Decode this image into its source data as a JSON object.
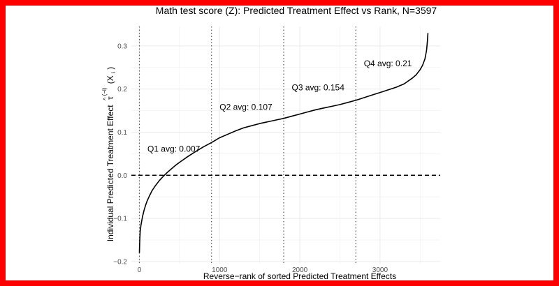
{
  "chart_data": {
    "type": "line",
    "title": "Math test score (Z): Predicted Treatment Effect vs Rank, N=3597",
    "xlabel": "Reverse−rank of sorted Predicted Treatment Effects",
    "ylabel_main": "Individual Predicted Treatment Effect",
    "ylabel_symbol": "τ",
    "ylabel_hat": "^",
    "ylabel_superscript": "(−i)",
    "ylabel_args": "(X",
    "ylabel_subscript": "i",
    "ylabel_close": ")",
    "xlim": [
      -100,
      3750
    ],
    "ylim": [
      -0.205,
      0.345
    ],
    "x_ticks": [
      0,
      1000,
      2000,
      3000
    ],
    "x_tick_labels": [
      "0",
      "1000",
      "2000",
      "3000"
    ],
    "y_ticks": [
      -0.2,
      -0.1,
      0.0,
      0.1,
      0.2,
      0.3
    ],
    "y_tick_labels": [
      "−0.2",
      "−0.1",
      "0.0",
      "0.1",
      "0.2",
      "0.3"
    ],
    "grid": true,
    "reference_line": {
      "y": 0.0,
      "style": "dashed"
    },
    "quartile_boundaries": [
      0,
      899,
      1799,
      2698
    ],
    "annotations": [
      {
        "text": "Q1 avg: 0.007",
        "x": 100,
        "y": 0.055
      },
      {
        "text": "Q2 avg: 0.107",
        "x": 1000,
        "y": 0.152
      },
      {
        "text": "Q3 avg: 0.154",
        "x": 1899,
        "y": 0.197
      },
      {
        "text": "Q4 avg: 0.21",
        "x": 2798,
        "y": 0.253
      }
    ],
    "series": [
      {
        "x": [
          0,
          5,
          10,
          20,
          40,
          60,
          80,
          100,
          130,
          160,
          200,
          250,
          300,
          350,
          400,
          450,
          500,
          600,
          700,
          800,
          900,
          1000,
          1100,
          1200,
          1300,
          1400,
          1500,
          1600,
          1700,
          1800,
          1900,
          2000,
          2100,
          2200,
          2300,
          2400,
          2500,
          2600,
          2700,
          2800,
          2900,
          3000,
          3100,
          3200,
          3300,
          3400,
          3450,
          3500,
          3530,
          3560,
          3580,
          3590,
          3597
        ],
        "y": [
          -0.18,
          -0.15,
          -0.13,
          -0.115,
          -0.095,
          -0.08,
          -0.068,
          -0.058,
          -0.046,
          -0.035,
          -0.024,
          -0.012,
          -0.002,
          0.007,
          0.015,
          0.023,
          0.03,
          0.043,
          0.055,
          0.066,
          0.076,
          0.087,
          0.095,
          0.103,
          0.11,
          0.115,
          0.12,
          0.124,
          0.128,
          0.132,
          0.137,
          0.142,
          0.147,
          0.152,
          0.156,
          0.16,
          0.164,
          0.169,
          0.174,
          0.18,
          0.186,
          0.192,
          0.198,
          0.204,
          0.212,
          0.225,
          0.233,
          0.245,
          0.255,
          0.27,
          0.29,
          0.31,
          0.33
        ]
      }
    ]
  }
}
